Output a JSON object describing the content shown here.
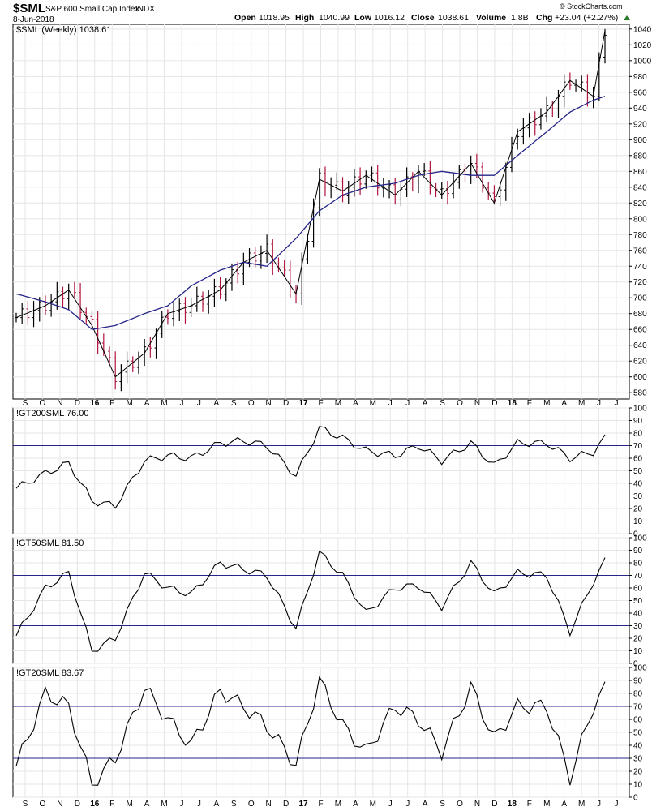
{
  "header": {
    "symbol": "$SML",
    "name": "S&P 600 Small Cap Index",
    "exchange": "INDX",
    "date": "8-Jun-2018",
    "open_label": "Open",
    "open": "1018.95",
    "high_label": "High",
    "high": "1040.99",
    "low_label": "Low",
    "low": "1016.12",
    "close_label": "Close",
    "close": "1038.61",
    "volume_label": "Volume",
    "volume": "1.8B",
    "chg_label": "Chg",
    "chg": "+23.04 (+2.27%)",
    "watermark": "© StockCharts.com"
  },
  "x_axis": {
    "labels": [
      "S",
      "O",
      "N",
      "D",
      "16",
      "F",
      "M",
      "A",
      "M",
      "J",
      "J",
      "A",
      "S",
      "O",
      "N",
      "D",
      "17",
      "F",
      "M",
      "A",
      "M",
      "J",
      "J",
      "A",
      "S",
      "O",
      "N",
      "D",
      "18",
      "F",
      "M",
      "A",
      "M",
      "J",
      "J"
    ],
    "bold": [
      "16",
      "17",
      "18"
    ]
  },
  "colors": {
    "up_bar": "#000000",
    "down_bar": "#b0143c",
    "moving_average": "#26268a",
    "reference_line": "#26268a",
    "indicator_line": "#000000",
    "grid": "#e6e6e6"
  },
  "chart_data": [
    {
      "type": "line",
      "title": "$SML (Weekly) 1038.61",
      "series_style": "ohlc-weekly-bars-with-moving-average",
      "ylim": [
        572,
        1046
      ],
      "yticks": [
        580,
        600,
        620,
        640,
        660,
        680,
        700,
        720,
        740,
        760,
        780,
        800,
        820,
        840,
        860,
        880,
        900,
        920,
        940,
        960,
        980,
        1000,
        1020,
        1040
      ],
      "x": [
        0,
        5,
        9,
        13,
        17,
        22,
        26,
        30,
        35,
        39,
        43,
        48,
        52,
        56,
        60,
        65,
        69,
        73,
        78,
        82,
        86,
        91,
        95,
        99,
        101
      ],
      "series": [
        {
          "name": "close",
          "values": [
            675,
            690,
            710,
            665,
            600,
            630,
            680,
            690,
            710,
            745,
            760,
            705,
            850,
            835,
            855,
            830,
            860,
            830,
            870,
            820,
            910,
            935,
            975,
            955,
            1038
          ]
        },
        {
          "name": "moving average",
          "values": [
            705,
            695,
            685,
            660,
            665,
            680,
            690,
            715,
            735,
            745,
            740,
            775,
            810,
            830,
            840,
            845,
            855,
            860,
            855,
            855,
            880,
            910,
            935,
            950,
            955
          ]
        }
      ]
    },
    {
      "type": "line",
      "title": "!GT200SML 76.00",
      "ylim": [
        0,
        100
      ],
      "yticks": [
        0,
        10,
        20,
        30,
        40,
        50,
        60,
        70,
        80,
        90,
        100
      ],
      "reference_lines": [
        30,
        70
      ],
      "x": [
        0,
        5,
        9,
        13,
        17,
        22,
        26,
        30,
        35,
        39,
        43,
        48,
        52,
        56,
        60,
        65,
        69,
        73,
        78,
        82,
        86,
        91,
        95,
        99,
        101
      ],
      "values": [
        36,
        48,
        56,
        26,
        22,
        58,
        62,
        60,
        72,
        74,
        70,
        46,
        84,
        76,
        66,
        62,
        70,
        58,
        72,
        54,
        72,
        72,
        60,
        65,
        76
      ]
    },
    {
      "type": "line",
      "title": "!GT50SML 81.50",
      "ylim": [
        0,
        100
      ],
      "yticks": [
        0,
        10,
        20,
        30,
        40,
        50,
        60,
        70,
        80,
        90,
        100
      ],
      "reference_lines": [
        30,
        70
      ],
      "x": [
        0,
        5,
        9,
        13,
        17,
        22,
        26,
        30,
        35,
        39,
        43,
        48,
        52,
        56,
        60,
        65,
        69,
        73,
        78,
        82,
        86,
        91,
        95,
        99,
        101
      ],
      "values": [
        22,
        60,
        72,
        10,
        20,
        72,
        60,
        55,
        80,
        75,
        70,
        28,
        88,
        70,
        40,
        60,
        62,
        45,
        80,
        55,
        72,
        70,
        25,
        65,
        81.5
      ]
    },
    {
      "type": "line",
      "title": "!GT20SML 83.67",
      "ylim": [
        0,
        100
      ],
      "yticks": [
        0,
        10,
        20,
        30,
        40,
        50,
        60,
        70,
        80,
        90,
        100
      ],
      "reference_lines": [
        30,
        70
      ],
      "x": [
        0,
        5,
        9,
        13,
        17,
        22,
        26,
        30,
        35,
        39,
        43,
        48,
        52,
        56,
        60,
        65,
        69,
        73,
        78,
        82,
        86,
        91,
        95,
        99,
        101
      ],
      "values": [
        24,
        80,
        70,
        10,
        30,
        84,
        60,
        40,
        82,
        70,
        55,
        25,
        90,
        55,
        35,
        70,
        60,
        35,
        85,
        45,
        70,
        70,
        15,
        70,
        83.67
      ]
    }
  ]
}
